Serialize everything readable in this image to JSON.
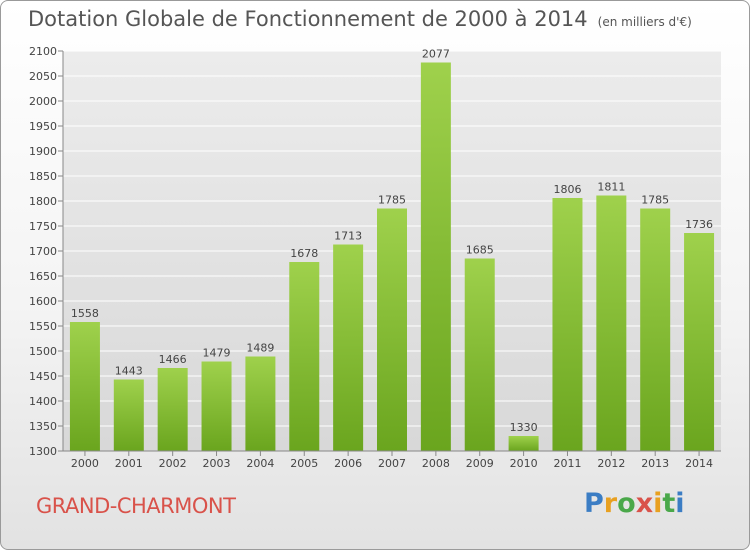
{
  "chart_data": {
    "type": "bar",
    "title": "Dotation Globale de Fonctionnement de 2000 à 2014",
    "subtitle": "(en milliers d'€)",
    "categories": [
      "2000",
      "2001",
      "2002",
      "2003",
      "2004",
      "2005",
      "2006",
      "2007",
      "2008",
      "2009",
      "2010",
      "2011",
      "2012",
      "2013",
      "2014"
    ],
    "values": [
      1558,
      1443,
      1466,
      1479,
      1489,
      1678,
      1713,
      1785,
      2077,
      1685,
      1330,
      1806,
      1811,
      1785,
      1736
    ],
    "ylim": [
      1300,
      2100
    ],
    "yticks": [
      1300,
      1350,
      1400,
      1450,
      1500,
      1550,
      1600,
      1650,
      1700,
      1750,
      1800,
      1850,
      1900,
      1950,
      2000,
      2050,
      2100
    ],
    "grid": true,
    "bar_color": "#8cc63f"
  },
  "footer": {
    "commune": "GRAND-CHARMONT",
    "logo": "Proxiti"
  }
}
